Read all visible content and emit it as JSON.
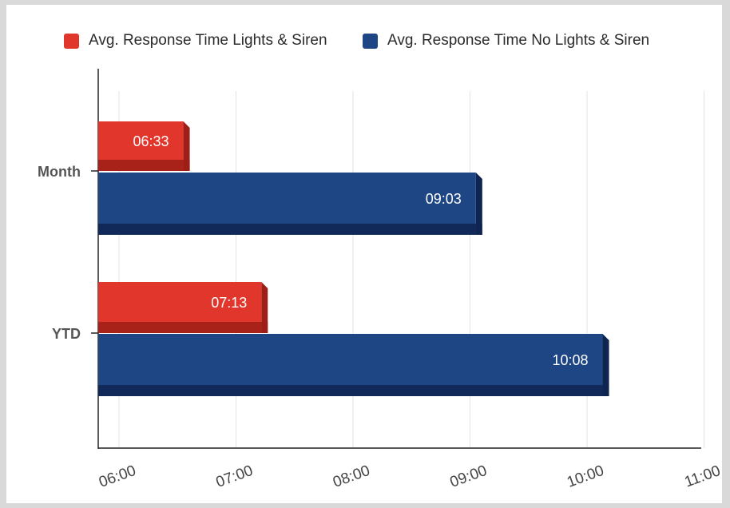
{
  "chart_data": {
    "type": "bar",
    "orientation": "horizontal",
    "categories": [
      "Month",
      "YTD"
    ],
    "series": [
      {
        "name": "Avg. Response Time Lights & Siren",
        "color": "#e0362b",
        "shade": "#9e1f17",
        "values": [
          "06:33",
          "07:13"
        ],
        "values_minutes": [
          6.55,
          7.2167
        ]
      },
      {
        "name": "Avg. Response Time No Lights & Siren",
        "color": "#1f4684",
        "shade": "#0f2550",
        "values": [
          "09:03",
          "10:08"
        ],
        "values_minutes": [
          9.05,
          10.1333
        ]
      }
    ],
    "xlim_minutes": [
      5.8,
      11
    ],
    "x_ticks": [
      "06:00",
      "07:00",
      "08:00",
      "09:00",
      "10:00",
      "11:00"
    ],
    "x_ticks_minutes": [
      6,
      7,
      8,
      9,
      10,
      11
    ],
    "legend_position": "top",
    "grid": true,
    "bar_style": "3d"
  }
}
